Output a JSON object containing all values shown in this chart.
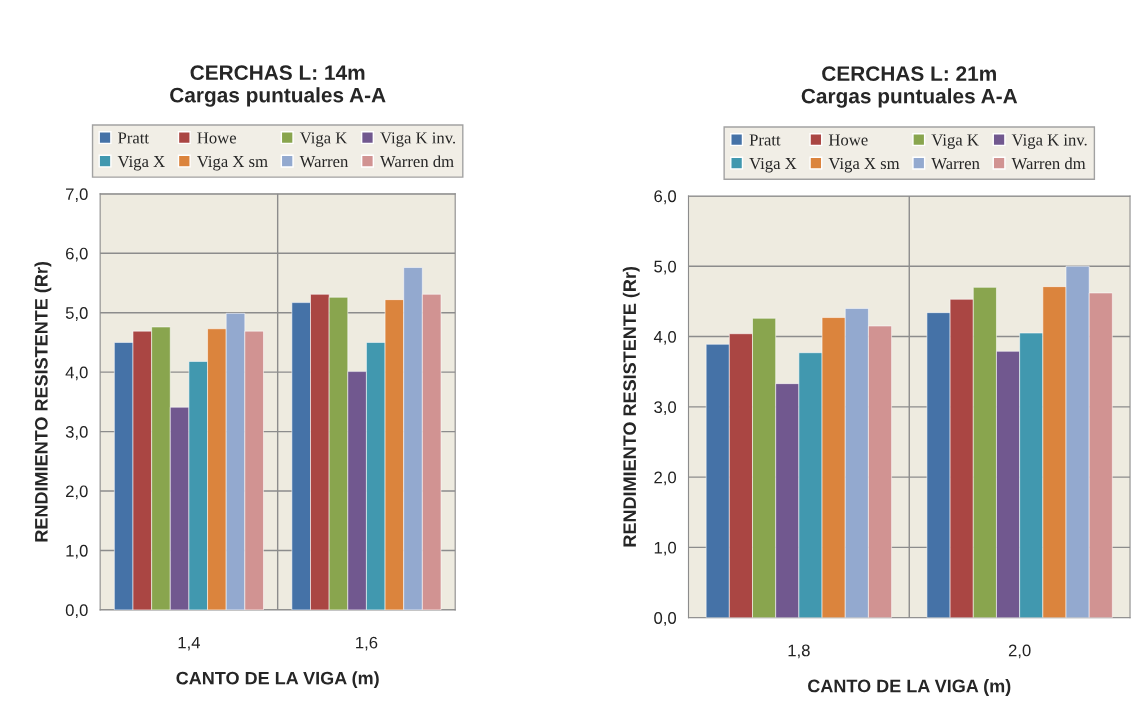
{
  "chart_data": [
    {
      "type": "bar",
      "title": "CERCHAS L: 14m\nCargas puntuales A-A",
      "xlabel": "CANTO DE LA VIGA (m)",
      "ylabel": "RENDIMIENTO RESISTENTE (Rr)",
      "categories": [
        "1,4",
        "1,6"
      ],
      "series": [
        {
          "name": "Pratt",
          "color": "#4572a7",
          "values": [
            4.5,
            5.17
          ]
        },
        {
          "name": "Howe",
          "color": "#aa4643",
          "values": [
            4.69,
            5.31
          ]
        },
        {
          "name": "Viga K",
          "color": "#89a54e",
          "values": [
            4.76,
            5.26
          ]
        },
        {
          "name": "Viga K inv.",
          "color": "#71588f",
          "values": [
            3.41,
            4.01
          ]
        },
        {
          "name": "Viga X",
          "color": "#4198af",
          "values": [
            4.18,
            4.5
          ]
        },
        {
          "name": "Viga X sm",
          "color": "#db843d",
          "values": [
            4.73,
            5.22
          ]
        },
        {
          "name": "Warren",
          "color": "#93a9cf",
          "values": [
            4.99,
            5.76
          ]
        },
        {
          "name": "Warren dm",
          "color": "#d19392",
          "values": [
            4.69,
            5.31
          ]
        }
      ],
      "ylim": [
        0,
        7
      ],
      "yticks": [
        {
          "value": 0,
          "label": "0,0"
        },
        {
          "value": 1,
          "label": "1,0"
        },
        {
          "value": 2,
          "label": "2,0"
        },
        {
          "value": 3,
          "label": "3,0"
        },
        {
          "value": 4,
          "label": "4,0"
        },
        {
          "value": 5,
          "label": "5,0"
        },
        {
          "value": 6,
          "label": "6,0"
        },
        {
          "value": 7,
          "label": "7,0"
        }
      ],
      "grid": true,
      "legend": "top"
    },
    {
      "type": "bar",
      "title": "CERCHAS L: 21m\nCargas puntuales A-A",
      "xlabel": "CANTO DE LA VIGA (m)",
      "ylabel": "RENDIMIENTO RESISTENTE (Rr)",
      "categories": [
        "1,8",
        "2,0"
      ],
      "series": [
        {
          "name": "Pratt",
          "color": "#4572a7",
          "values": [
            3.89,
            4.34
          ]
        },
        {
          "name": "Howe",
          "color": "#aa4643",
          "values": [
            4.04,
            4.53
          ]
        },
        {
          "name": "Viga K",
          "color": "#89a54e",
          "values": [
            4.26,
            4.7
          ]
        },
        {
          "name": "Viga K inv.",
          "color": "#71588f",
          "values": [
            3.33,
            3.79
          ]
        },
        {
          "name": "Viga X",
          "color": "#4198af",
          "values": [
            3.77,
            4.05
          ]
        },
        {
          "name": "Viga X sm",
          "color": "#db843d",
          "values": [
            4.27,
            4.71
          ]
        },
        {
          "name": "Warren",
          "color": "#93a9cf",
          "values": [
            4.4,
            5.0
          ]
        },
        {
          "name": "Warren dm",
          "color": "#d19392",
          "values": [
            4.15,
            4.62
          ]
        }
      ],
      "ylim": [
        0,
        6
      ],
      "yticks": [
        {
          "value": 0,
          "label": "0,0"
        },
        {
          "value": 1,
          "label": "1,0"
        },
        {
          "value": 2,
          "label": "2,0"
        },
        {
          "value": 3,
          "label": "3,0"
        },
        {
          "value": 4,
          "label": "4,0"
        },
        {
          "value": 5,
          "label": "5,0"
        },
        {
          "value": 6,
          "label": "6,0"
        }
      ],
      "grid": true,
      "legend": "top"
    }
  ]
}
